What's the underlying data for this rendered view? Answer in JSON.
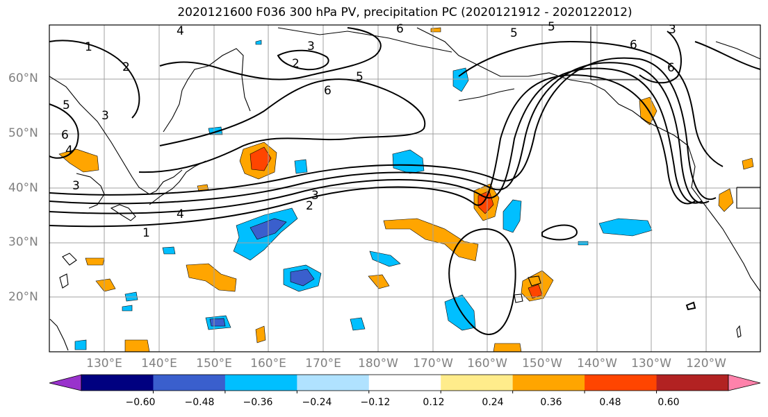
{
  "title": "2020121600 F036 300 hPa PV, precipitation PC (2020121912 - 2020122012)",
  "lat_labels": [
    "60°N",
    "50°N",
    "40°N",
    "30°N",
    "20°N"
  ],
  "lon_labels": [
    "130°E",
    "140°E",
    "150°E",
    "160°E",
    "170°E",
    "180°W",
    "170°W",
    "160°W",
    "150°W",
    "140°W",
    "130°W",
    "120°W"
  ],
  "contour_labels": [
    "1",
    "2",
    "3",
    "4",
    "5",
    "6"
  ],
  "colorbar": {
    "ticks": [
      "−0.60",
      "−0.48",
      "−0.36",
      "−0.24",
      "−0.12",
      "0.12",
      "0.24",
      "0.36",
      "0.48",
      "0.60"
    ],
    "colors": [
      "#9932cc",
      "#000080",
      "#3a5fcd",
      "#00bfff",
      "#b0e2ff",
      "#ffffff",
      "#ffec8b",
      "#ffa500",
      "#ff4500",
      "#b22222",
      "#ff82ab"
    ]
  }
}
